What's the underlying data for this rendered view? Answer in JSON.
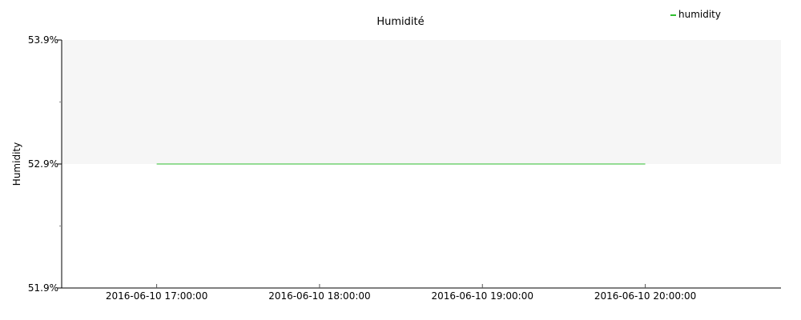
{
  "chart_data": {
    "type": "line",
    "title": "Humidité",
    "xlabel": "",
    "ylabel": "Humidity",
    "legend": {
      "placement": "top-right"
    },
    "ylim": [
      51.9,
      53.9
    ],
    "y_ticks": [
      "53.9%",
      "52.9%",
      "51.9%"
    ],
    "y_tick_values": [
      53.9,
      52.9,
      51.9
    ],
    "x_ticks": [
      "2016-06-10 17:00:00",
      "2016-06-10 18:00:00",
      "2016-06-10 19:00:00",
      "2016-06-10 20:00:00"
    ],
    "xlim": [
      "2016-06-10 16:25:00",
      "2016-06-10 20:50:00"
    ],
    "grid": false,
    "band": {
      "from": 52.9,
      "to": 53.9,
      "color": "#f6f6f6"
    },
    "series": [
      {
        "name": "humidity",
        "color": "#2fbf2f",
        "x": [
          "2016-06-10 17:00:00",
          "2016-06-10 20:00:00"
        ],
        "values": [
          52.9,
          52.9
        ]
      }
    ]
  }
}
